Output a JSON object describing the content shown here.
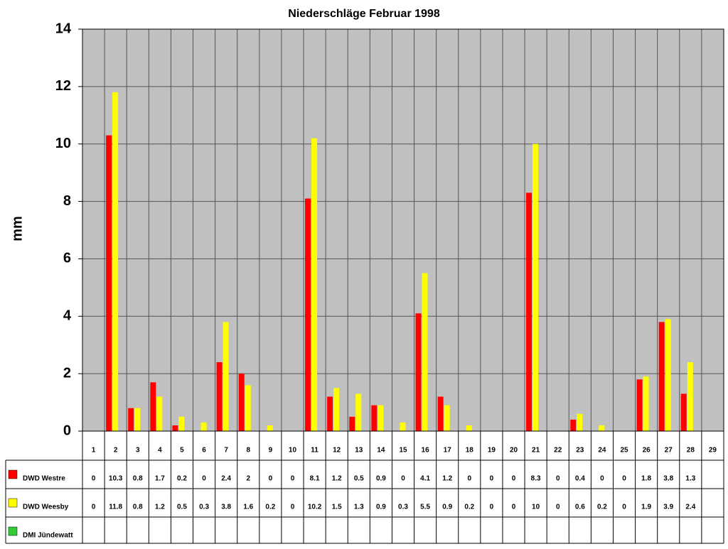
{
  "chart_data": {
    "type": "bar",
    "title": "Niederschläge Februar 1998",
    "y_label": "mm",
    "categories": [
      "1",
      "2",
      "3",
      "4",
      "5",
      "6",
      "7",
      "8",
      "9",
      "10",
      "11",
      "12",
      "13",
      "14",
      "15",
      "16",
      "17",
      "18",
      "19",
      "20",
      "21",
      "22",
      "23",
      "24",
      "25",
      "26",
      "27",
      "28",
      "29"
    ],
    "series": [
      {
        "name": "DWD Westre",
        "color": "#ff0000",
        "values": [
          0,
          10.3,
          0.8,
          1.7,
          0.2,
          0,
          2.4,
          2,
          0,
          0,
          8.1,
          1.2,
          0.5,
          0.9,
          0,
          4.1,
          1.2,
          0,
          0,
          0,
          8.3,
          0,
          0.4,
          0,
          0,
          1.8,
          3.8,
          1.3,
          null
        ]
      },
      {
        "name": "DWD Weesby",
        "color": "#ffff00",
        "values": [
          0,
          11.8,
          0.8,
          1.2,
          0.5,
          0.3,
          3.8,
          1.6,
          0.2,
          0,
          10.2,
          1.5,
          1.3,
          0.9,
          0.3,
          5.5,
          0.9,
          0.2,
          0,
          0,
          10,
          0,
          0.6,
          0.2,
          0,
          1.9,
          3.9,
          2.4,
          null
        ]
      },
      {
        "name": "DMI Jündewatt",
        "color": "#33cc33",
        "values": [
          null,
          null,
          null,
          null,
          null,
          null,
          null,
          null,
          null,
          null,
          null,
          null,
          null,
          null,
          null,
          null,
          null,
          null,
          null,
          null,
          null,
          null,
          null,
          null,
          null,
          null,
          null,
          null,
          null
        ]
      }
    ],
    "ylim": [
      0,
      14
    ],
    "yticks": [
      0,
      2,
      4,
      6,
      8,
      10,
      12,
      14
    ],
    "grid": true
  }
}
